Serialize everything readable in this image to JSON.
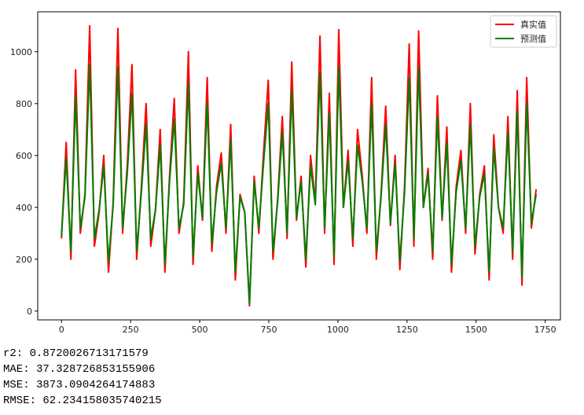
{
  "chart_data": {
    "type": "line",
    "x": [
      0,
      17,
      34,
      51,
      68,
      85,
      102,
      119,
      136,
      153,
      170,
      187,
      204,
      221,
      238,
      255,
      272,
      289,
      306,
      323,
      340,
      357,
      374,
      391,
      408,
      425,
      442,
      459,
      476,
      493,
      510,
      527,
      544,
      561,
      578,
      595,
      612,
      629,
      646,
      663,
      680,
      697,
      714,
      731,
      748,
      765,
      782,
      799,
      816,
      833,
      850,
      867,
      884,
      901,
      918,
      935,
      952,
      969,
      986,
      1003,
      1020,
      1037,
      1054,
      1071,
      1088,
      1105,
      1122,
      1139,
      1156,
      1173,
      1190,
      1207,
      1224,
      1241,
      1258,
      1275,
      1292,
      1309,
      1326,
      1343,
      1360,
      1377,
      1394,
      1411,
      1428,
      1445,
      1462,
      1479,
      1496,
      1513,
      1530,
      1547,
      1564,
      1581,
      1598,
      1615,
      1632,
      1649,
      1666,
      1683,
      1700,
      1717
    ],
    "series": [
      {
        "name": "真实值",
        "color": "#ff0000",
        "values": [
          280,
          650,
          200,
          930,
          300,
          450,
          1100,
          250,
          380,
          600,
          150,
          420,
          1090,
          300,
          560,
          950,
          200,
          480,
          800,
          250,
          390,
          700,
          150,
          520,
          820,
          300,
          420,
          1000,
          180,
          560,
          350,
          900,
          230,
          480,
          610,
          300,
          720,
          120,
          450,
          380,
          20,
          520,
          300,
          610,
          890,
          200,
          430,
          750,
          280,
          960,
          350,
          520,
          170,
          600,
          420,
          1060,
          300,
          840,
          180,
          1085,
          400,
          620,
          250,
          700,
          520,
          300,
          900,
          200,
          450,
          790,
          330,
          600,
          160,
          480,
          1030,
          250,
          1080,
          400,
          550,
          200,
          830,
          350,
          710,
          150,
          480,
          620,
          300,
          800,
          220,
          450,
          560,
          120,
          680,
          400,
          300,
          750,
          200,
          850,
          100,
          900,
          320,
          470
        ]
      },
      {
        "name": "预测值",
        "color": "#008000",
        "values": [
          290,
          590,
          230,
          830,
          320,
          440,
          950,
          280,
          390,
          560,
          190,
          410,
          940,
          320,
          530,
          840,
          230,
          460,
          720,
          280,
          390,
          640,
          180,
          500,
          740,
          320,
          410,
          880,
          210,
          530,
          360,
          800,
          260,
          460,
          570,
          320,
          660,
          150,
          440,
          380,
          30,
          500,
          320,
          570,
          800,
          230,
          420,
          690,
          300,
          850,
          360,
          500,
          200,
          560,
          410,
          920,
          320,
          760,
          210,
          940,
          400,
          580,
          280,
          640,
          500,
          320,
          800,
          230,
          440,
          720,
          340,
          570,
          190,
          460,
          900,
          280,
          940,
          400,
          530,
          230,
          750,
          360,
          650,
          180,
          460,
          580,
          320,
          720,
          250,
          440,
          530,
          150,
          630,
          400,
          320,
          690,
          230,
          770,
          130,
          800,
          340,
          450
        ]
      }
    ],
    "xlim": [
      -86,
      1805
    ],
    "ylim": [
      -34,
      1154
    ],
    "xticks": [
      0,
      250,
      500,
      750,
      1000,
      1250,
      1500,
      1750
    ],
    "yticks": [
      0,
      200,
      400,
      600,
      800,
      1000
    ],
    "legend": "upper right"
  },
  "text_lines": [
    "r2: 0.8720026713171579",
    "MAE: 37.328726853155906",
    "MSE: 3873.0904264174883",
    "RMSE: 62.234158035740215"
  ]
}
